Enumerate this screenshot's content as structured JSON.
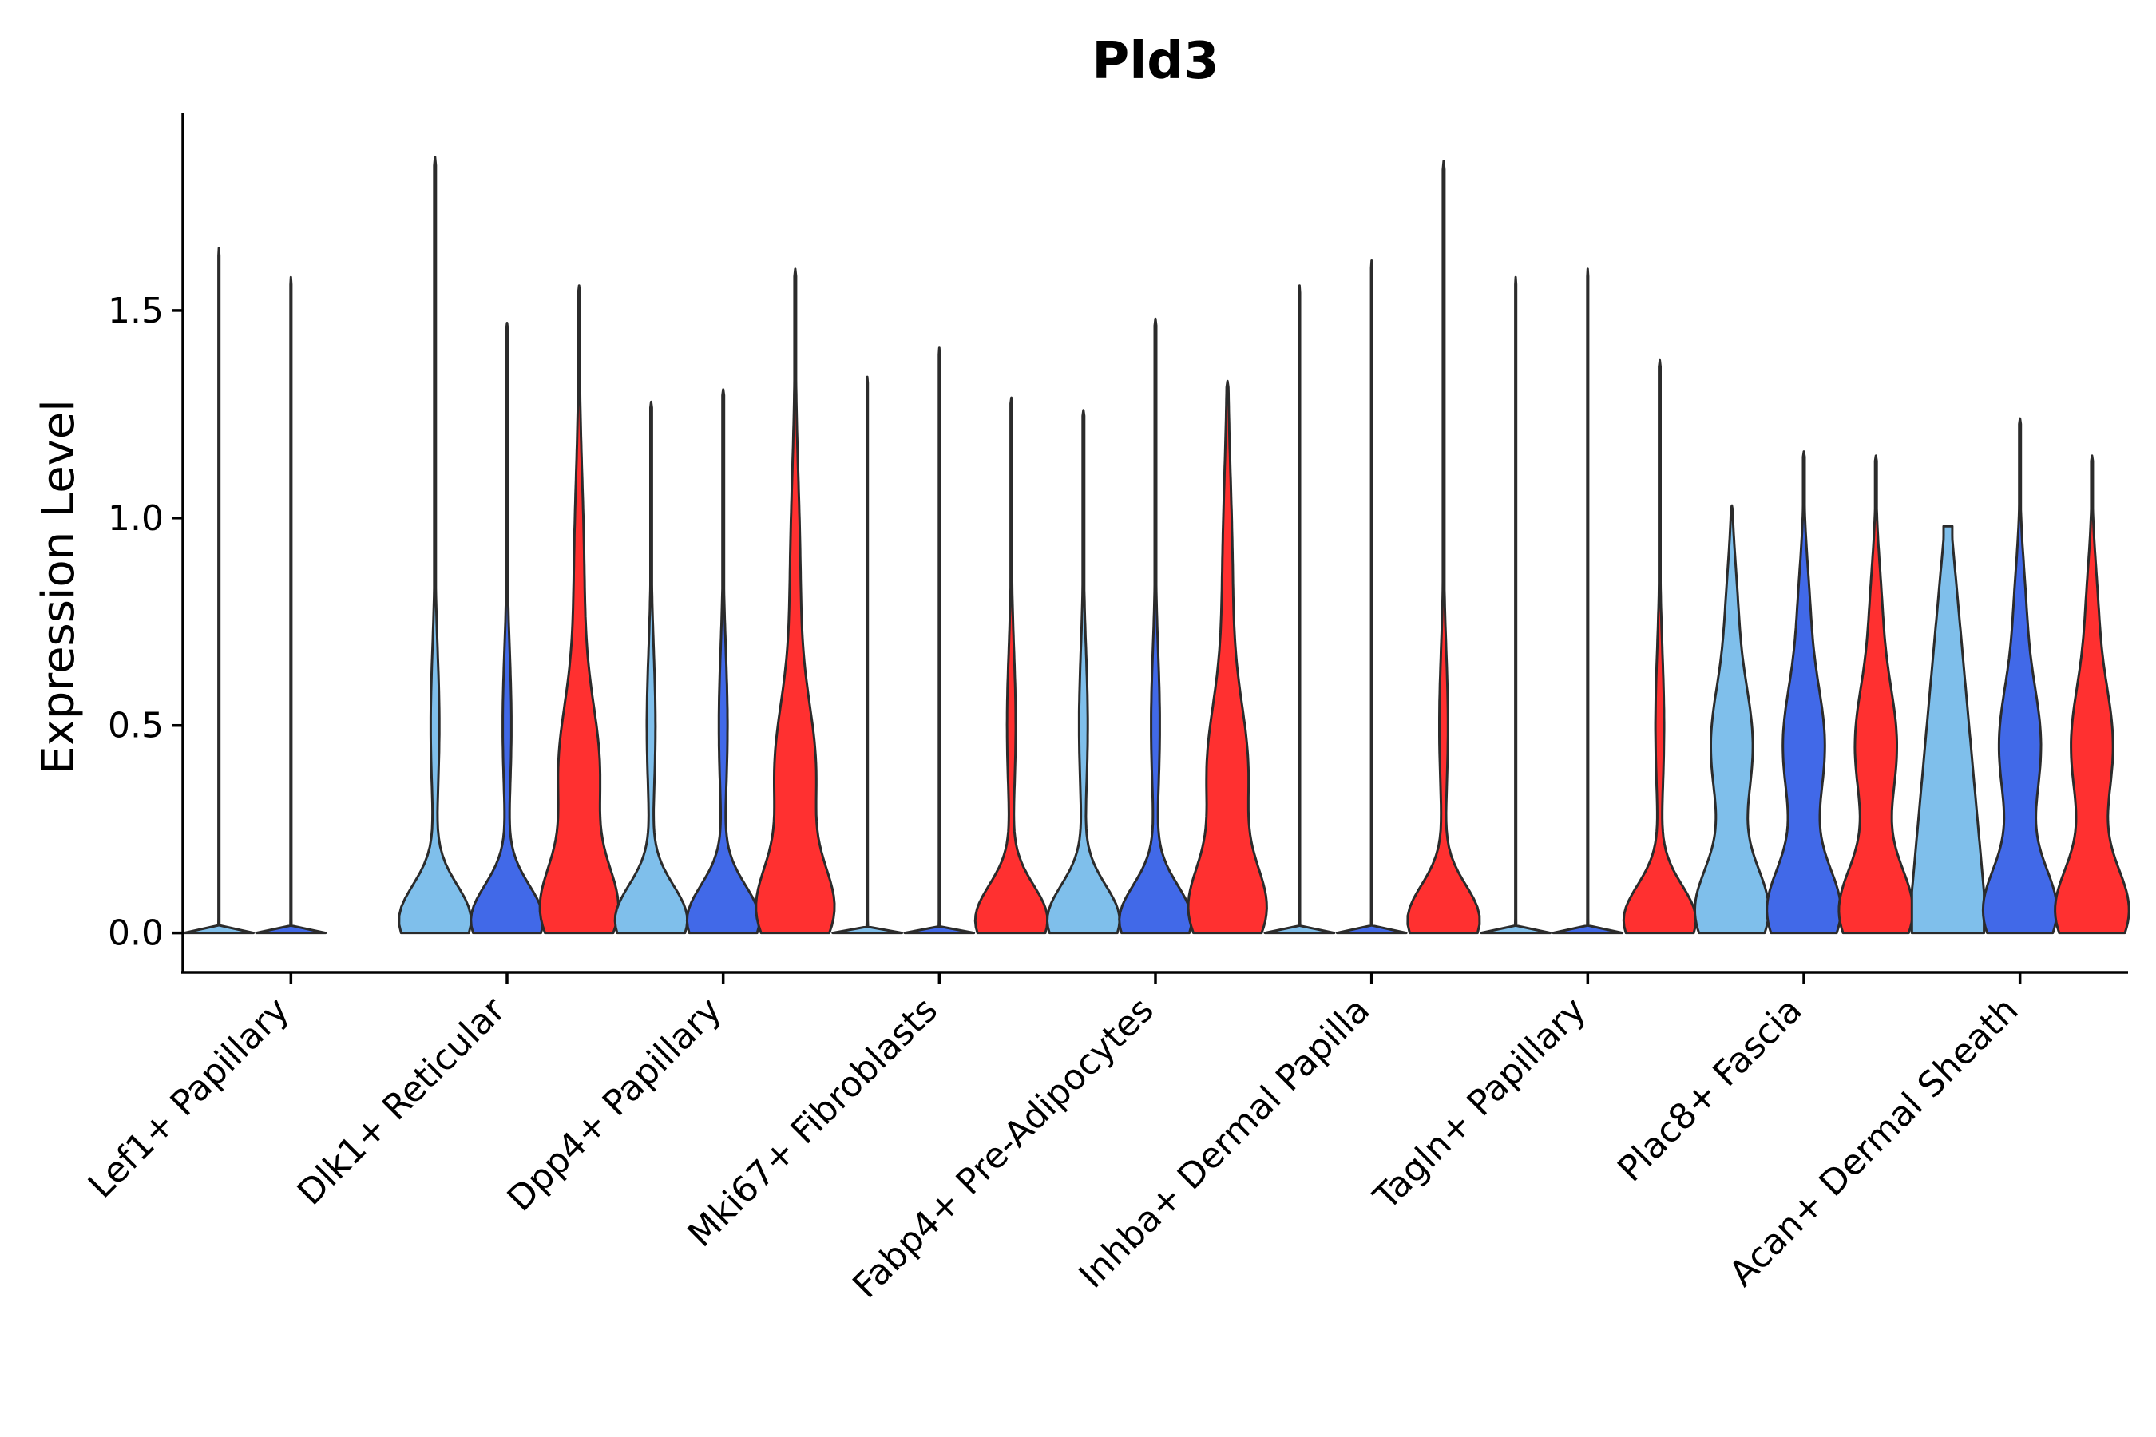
{
  "chart_data": {
    "type": "violin",
    "title": "Pld3",
    "xlabel": "",
    "ylabel": "Expression Level",
    "ylim": [
      -0.095,
      1.975
    ],
    "yticks": [
      0.0,
      0.5,
      1.0,
      1.5
    ],
    "ytick_labels": [
      "0.0",
      "0.5",
      "1.0",
      "1.5"
    ],
    "grid": false,
    "series_colors": [
      "#7fbfeb",
      "#4169e8",
      "#ff3030"
    ],
    "categories": [
      "Lef1+ Papillary",
      "Dlk1+ Reticular",
      "Dpp4+ Papillary",
      "Mki67+ Fibroblasts",
      "Fabp4+ Pre-Adipocytes",
      "Inhba+ Dermal Papilla",
      "Tagln+ Papillary",
      "Plac8+ Fascia",
      "Acan+ Dermal Sheath"
    ],
    "groups": [
      {
        "category": "Lef1+ Papillary",
        "violins": [
          {
            "max": 1.65,
            "shape": "flat"
          },
          {
            "max": 1.58,
            "shape": "flat"
          }
        ]
      },
      {
        "category": "Dlk1+ Reticular",
        "violins": [
          {
            "max": 1.87,
            "shape": "light"
          },
          {
            "max": 1.47,
            "shape": "light"
          },
          {
            "max": 1.56,
            "shape": "full"
          }
        ]
      },
      {
        "category": "Dpp4+ Papillary",
        "violins": [
          {
            "max": 1.28,
            "shape": "light"
          },
          {
            "max": 1.31,
            "shape": "light"
          },
          {
            "max": 1.6,
            "shape": "full"
          }
        ]
      },
      {
        "category": "Mki67+ Fibroblasts",
        "violins": [
          {
            "max": 1.34,
            "shape": "flat"
          },
          {
            "max": 1.41,
            "shape": "flat"
          },
          {
            "max": 1.29,
            "shape": "light"
          }
        ]
      },
      {
        "category": "Fabp4+ Pre-Adipocytes",
        "violins": [
          {
            "max": 1.26,
            "shape": "light"
          },
          {
            "max": 1.48,
            "shape": "light"
          },
          {
            "max": 1.33,
            "shape": "full"
          }
        ]
      },
      {
        "category": "Inhba+ Dermal Papilla",
        "violins": [
          {
            "max": 1.56,
            "shape": "flat"
          },
          {
            "max": 1.62,
            "shape": "flat"
          },
          {
            "max": 1.86,
            "shape": "light"
          }
        ]
      },
      {
        "category": "Tagln+ Papillary",
        "violins": [
          {
            "max": 1.58,
            "shape": "flat"
          },
          {
            "max": 1.6,
            "shape": "flat"
          },
          {
            "max": 1.38,
            "shape": "light"
          }
        ]
      },
      {
        "category": "Plac8+ Fascia",
        "violins": [
          {
            "max": 1.03,
            "shape": "bimodal"
          },
          {
            "max": 1.16,
            "shape": "bimodal"
          },
          {
            "max": 1.15,
            "shape": "bimodal"
          }
        ]
      },
      {
        "category": "Acan+ Dermal Sheath",
        "violins": [
          {
            "max": 0.98,
            "shape": "wide"
          },
          {
            "max": 1.24,
            "shape": "bimodal"
          },
          {
            "max": 1.15,
            "shape": "bimodal"
          }
        ]
      }
    ]
  }
}
